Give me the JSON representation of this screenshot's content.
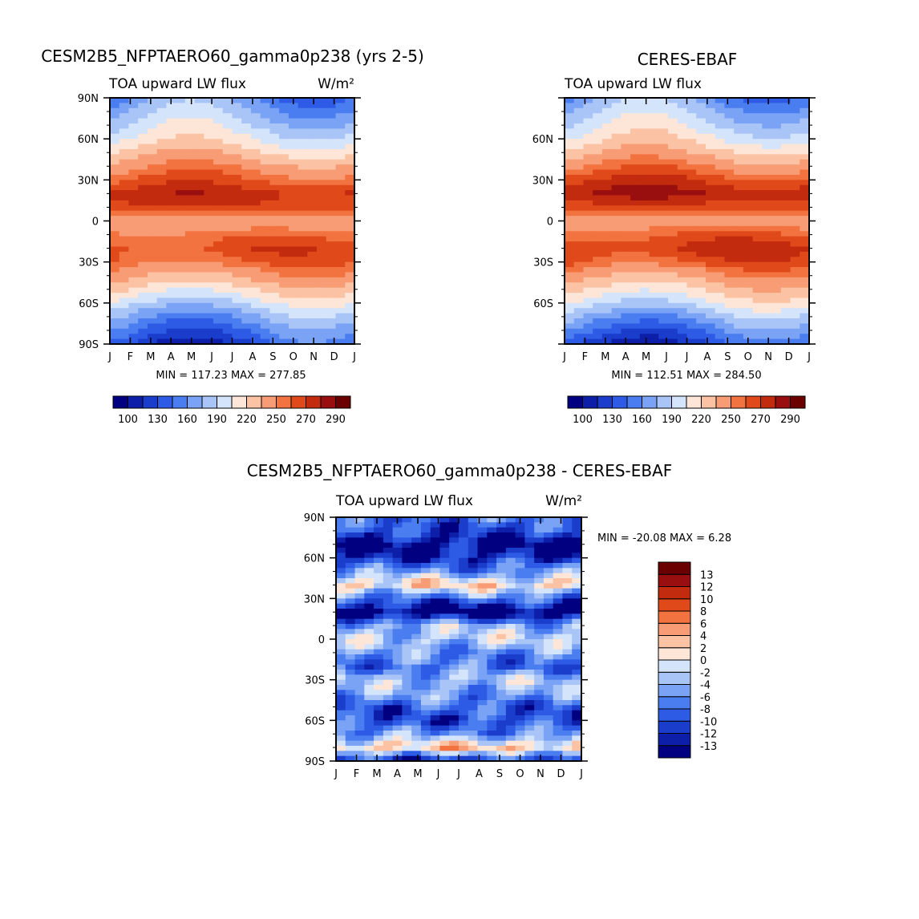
{
  "chart_data": [
    {
      "type": "heatmap",
      "title": "CESM2B5_NFPTAERO60_gamma0p238 (yrs 2-5)",
      "left_label": "TOA upward LW flux",
      "right_label": "W/m²",
      "x_tick_labels": [
        "J",
        "F",
        "M",
        "A",
        "M",
        "J",
        "J",
        "A",
        "S",
        "O",
        "N",
        "D",
        "J"
      ],
      "y_tick_labels": [
        "90N",
        "60N",
        "30N",
        "0",
        "30S",
        "60S",
        "90S"
      ],
      "xlim": [
        0,
        12
      ],
      "ylim": [
        -90,
        90
      ],
      "min_max_text": "MIN = 117.23 MAX = 277.85",
      "min": 117.23,
      "max": 277.85,
      "colorbar_levels": [
        100,
        115,
        130,
        145,
        160,
        175,
        190,
        205,
        220,
        235,
        250,
        260,
        270,
        280,
        290
      ],
      "colorbar_labels": [
        "100",
        "130",
        "160",
        "190",
        "220",
        "250",
        "270",
        "290"
      ],
      "colors": [
        "#000080",
        "#0d1fa8",
        "#1a3dcc",
        "#2e5be6",
        "#4a7ef0",
        "#7aa2f5",
        "#a9c4f7",
        "#d3e4fb",
        "#fde6d8",
        "#fbc3a4",
        "#f79c74",
        "#f2733f",
        "#e04a1a",
        "#c32b0f",
        "#990f0f",
        "#6b0000"
      ],
      "profile": {
        "lat": [
          90,
          80,
          70,
          60,
          50,
          40,
          30,
          20,
          10,
          0,
          -10,
          -20,
          -30,
          -40,
          -50,
          -60,
          -70,
          -80,
          -90
        ],
        "value": [
          160,
          175,
          190,
          205,
          225,
          245,
          260,
          275,
          268,
          235,
          255,
          265,
          258,
          240,
          220,
          195,
          170,
          150,
          130
        ]
      }
    },
    {
      "type": "heatmap",
      "title": "CERES-EBAF",
      "left_label": "TOA upward LW flux",
      "right_label": "",
      "x_tick_labels": [
        "J",
        "F",
        "M",
        "A",
        "M",
        "J",
        "J",
        "A",
        "S",
        "O",
        "N",
        "D",
        "J"
      ],
      "y_tick_labels": [
        "",
        "60N",
        "30N",
        "0",
        "30S",
        "60S",
        ""
      ],
      "xlim": [
        0,
        12
      ],
      "ylim": [
        -90,
        90
      ],
      "min_max_text": "MIN = 112.51 MAX = 284.50",
      "min": 112.51,
      "max": 284.5,
      "colorbar_levels": [
        100,
        115,
        130,
        145,
        160,
        175,
        190,
        205,
        220,
        235,
        250,
        260,
        270,
        280,
        290
      ],
      "colorbar_labels": [
        "100",
        "130",
        "160",
        "190",
        "220",
        "250",
        "270",
        "290"
      ],
      "colors": [
        "#000080",
        "#0d1fa8",
        "#1a3dcc",
        "#2e5be6",
        "#4a7ef0",
        "#7aa2f5",
        "#a9c4f7",
        "#d3e4fb",
        "#fde6d8",
        "#fbc3a4",
        "#f79c74",
        "#f2733f",
        "#e04a1a",
        "#c32b0f",
        "#990f0f",
        "#6b0000"
      ],
      "profile": {
        "lat": [
          90,
          80,
          70,
          60,
          50,
          40,
          30,
          20,
          10,
          0,
          -10,
          -20,
          -30,
          -40,
          -50,
          -60,
          -70,
          -80,
          -90
        ],
        "value": [
          165,
          180,
          195,
          210,
          230,
          250,
          268,
          280,
          265,
          240,
          260,
          272,
          262,
          242,
          222,
          200,
          175,
          150,
          128
        ]
      }
    },
    {
      "type": "heatmap",
      "title": "CESM2B5_NFPTAERO60_gamma0p238 - CERES-EBAF",
      "left_label": "TOA upward LW flux",
      "right_label": "W/m²",
      "x_tick_labels": [
        "J",
        "F",
        "M",
        "A",
        "M",
        "J",
        "J",
        "A",
        "S",
        "O",
        "N",
        "D",
        "J"
      ],
      "y_tick_labels": [
        "90N",
        "60N",
        "30N",
        "0",
        "30S",
        "60S",
        "90S"
      ],
      "xlim": [
        0,
        12
      ],
      "ylim": [
        -90,
        90
      ],
      "min_max_text": "MIN = -20.08 MAX =    6.28",
      "min": -20.08,
      "max": 6.28,
      "colorbar_levels": [
        -13,
        -12,
        -10,
        -8,
        -6,
        -4,
        -2,
        0,
        2,
        4,
        6,
        8,
        10,
        12,
        13
      ],
      "colorbar_labels": [
        "-13",
        "-12",
        "-10",
        "-8",
        "-6",
        "-4",
        "-2",
        "0",
        "2",
        "4",
        "6",
        "8",
        "10",
        "12",
        "13"
      ],
      "colors": [
        "#000080",
        "#0d1fa8",
        "#1a3dcc",
        "#2e5be6",
        "#4a7ef0",
        "#7aa2f5",
        "#a9c4f7",
        "#d3e4fb",
        "#fde6d8",
        "#fbc3a4",
        "#f79c74",
        "#f2733f",
        "#e04a1a",
        "#c32b0f",
        "#990f0f",
        "#6b0000"
      ],
      "profile": {
        "lat": [
          90,
          80,
          70,
          60,
          50,
          40,
          30,
          20,
          10,
          0,
          -10,
          -20,
          -30,
          -40,
          -50,
          -60,
          -70,
          -80,
          -90
        ],
        "value": [
          -8,
          -10,
          -14,
          -12,
          -6,
          2,
          -8,
          -16,
          -4,
          -2,
          -6,
          -8,
          -3,
          -5,
          -9,
          -10,
          -6,
          3,
          -12
        ]
      }
    }
  ]
}
